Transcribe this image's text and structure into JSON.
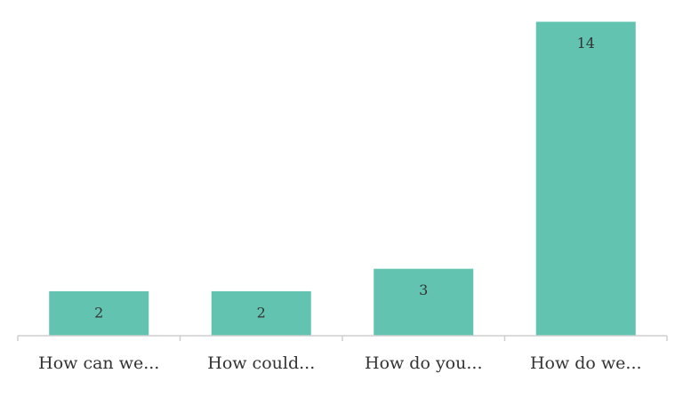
{
  "chart_data": {
    "type": "bar",
    "categories": [
      "How can we...",
      "How could...",
      "How do you...",
      "How do we..."
    ],
    "values": [
      2,
      2,
      3,
      14
    ],
    "data_labels": [
      "2",
      "2",
      "3",
      "14"
    ],
    "ylim": [
      0,
      14
    ],
    "grid": false,
    "legend": "none",
    "colors": {
      "bar": "#62c4b0",
      "axis": "#cfcfcf",
      "text": "#333333"
    }
  }
}
